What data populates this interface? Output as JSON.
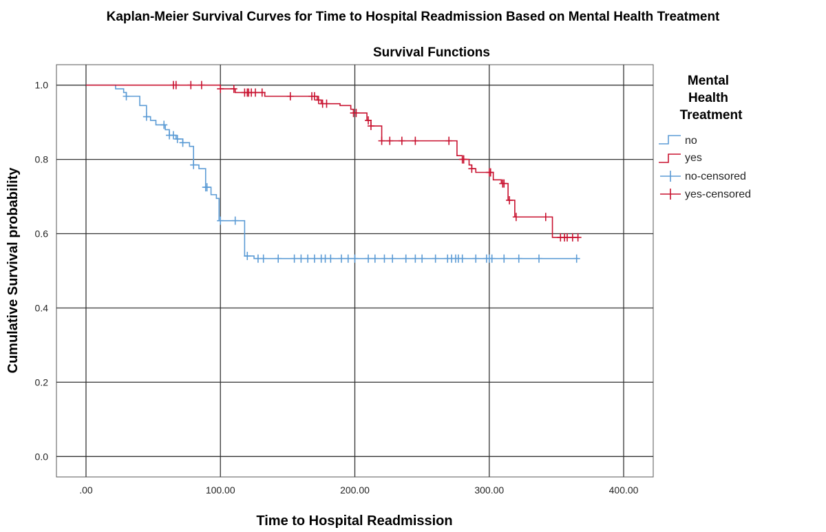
{
  "chart_data": {
    "type": "line",
    "subtype": "kaplan-meier-step",
    "title": "Kaplan-Meier Survival Curves for Time to Hospital Readmission Based on Mental Health Treatment",
    "subtitle": "Survival Functions",
    "xlabel": "Time to Hospital Readmission",
    "ylabel": "Cumulative Survival probability",
    "xlim": [
      -22,
      422
    ],
    "ylim": [
      -0.055,
      1.055
    ],
    "xticks": [
      0,
      100,
      200,
      300,
      400
    ],
    "xtick_labels": [
      ".00",
      "100.00",
      "200.00",
      "300.00",
      "400.00"
    ],
    "yticks": [
      0.0,
      0.2,
      0.4,
      0.6,
      0.8,
      1.0
    ],
    "ytick_labels": [
      "0.0",
      "0.2",
      "0.4",
      "0.6",
      "0.8",
      "1.0"
    ],
    "grid": true,
    "legend": {
      "title": "Mental Health Treatment",
      "title_lines": [
        "Mental",
        "Health",
        "Treatment"
      ],
      "placement": "right",
      "entries": [
        {
          "label": "no",
          "kind": "step",
          "series": "no"
        },
        {
          "label": "yes",
          "kind": "step",
          "series": "yes"
        },
        {
          "label": "no-censored",
          "kind": "censor",
          "series": "no"
        },
        {
          "label": "yes-censored",
          "kind": "censor",
          "series": "yes"
        }
      ]
    },
    "series": [
      {
        "name": "no",
        "color": "#5b9bd5",
        "steps": [
          {
            "t": 0,
            "s": 1.0
          },
          {
            "t": 22,
            "s": 0.99
          },
          {
            "t": 28,
            "s": 0.98
          },
          {
            "t": 30,
            "s": 0.97
          },
          {
            "t": 40,
            "s": 0.945
          },
          {
            "t": 45,
            "s": 0.915
          },
          {
            "t": 48,
            "s": 0.905
          },
          {
            "t": 52,
            "s": 0.893
          },
          {
            "t": 59,
            "s": 0.88
          },
          {
            "t": 62,
            "s": 0.865
          },
          {
            "t": 67,
            "s": 0.855
          },
          {
            "t": 72,
            "s": 0.845
          },
          {
            "t": 77,
            "s": 0.835
          },
          {
            "t": 80,
            "s": 0.785
          },
          {
            "t": 84,
            "s": 0.775
          },
          {
            "t": 89,
            "s": 0.725
          },
          {
            "t": 93,
            "s": 0.705
          },
          {
            "t": 97,
            "s": 0.695
          },
          {
            "t": 99,
            "s": 0.635
          },
          {
            "t": 118,
            "s": 0.54
          },
          {
            "t": 125,
            "s": 0.533
          }
        ],
        "end": 366,
        "censored": [
          30,
          45,
          58,
          62,
          65,
          68,
          72,
          80,
          89,
          90,
          100,
          111,
          120,
          128,
          132,
          143,
          155,
          160,
          165,
          170,
          175,
          178,
          182,
          190,
          195,
          200,
          210,
          215,
          222,
          228,
          238,
          245,
          250,
          260,
          269,
          272,
          275,
          277,
          280,
          290,
          298,
          300,
          302,
          311,
          322,
          337,
          365
        ]
      },
      {
        "name": "yes",
        "color": "#c8102e",
        "steps": [
          {
            "t": 0,
            "s": 1.0
          },
          {
            "t": 100,
            "s": 0.99
          },
          {
            "t": 111,
            "s": 0.98
          },
          {
            "t": 133,
            "s": 0.97
          },
          {
            "t": 172,
            "s": 0.96
          },
          {
            "t": 175,
            "s": 0.95
          },
          {
            "t": 189,
            "s": 0.945
          },
          {
            "t": 197,
            "s": 0.935
          },
          {
            "t": 199,
            "s": 0.925
          },
          {
            "t": 209,
            "s": 0.905
          },
          {
            "t": 212,
            "s": 0.89
          },
          {
            "t": 220,
            "s": 0.85
          },
          {
            "t": 276,
            "s": 0.81
          },
          {
            "t": 280,
            "s": 0.8
          },
          {
            "t": 285,
            "s": 0.785
          },
          {
            "t": 287,
            "s": 0.775
          },
          {
            "t": 290,
            "s": 0.765
          },
          {
            "t": 303,
            "s": 0.745
          },
          {
            "t": 309,
            "s": 0.735
          },
          {
            "t": 314,
            "s": 0.69
          },
          {
            "t": 319,
            "s": 0.645
          },
          {
            "t": 347,
            "s": 0.59
          }
        ],
        "end": 366,
        "censored": [
          65,
          67,
          78,
          86,
          100,
          110,
          118,
          120,
          121,
          123,
          126,
          131,
          152,
          168,
          170,
          173,
          176,
          179,
          199,
          201,
          210,
          212,
          220,
          226,
          235,
          245,
          270,
          280,
          281,
          287,
          300,
          301,
          310,
          311,
          315,
          320,
          342,
          353,
          356,
          358,
          362,
          366
        ]
      }
    ]
  }
}
